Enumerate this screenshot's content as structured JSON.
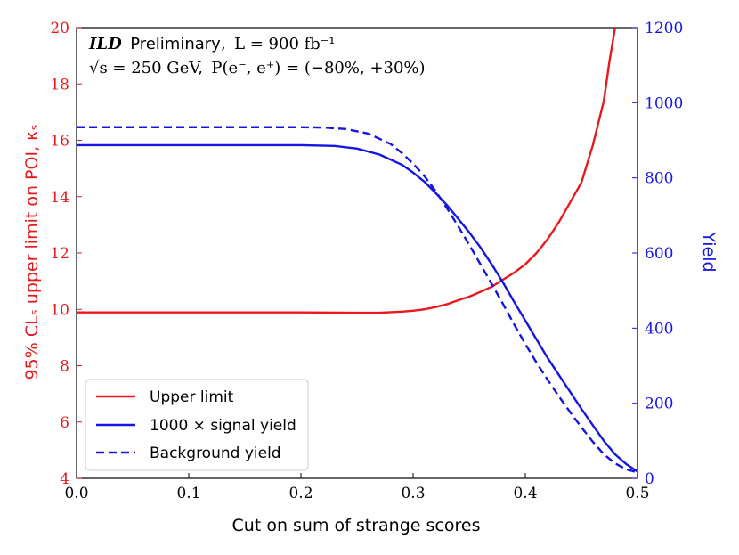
{
  "chart_data": {
    "type": "line",
    "title": "",
    "annotation": {
      "experiment": "ILD",
      "status": "Preliminary,",
      "lumi": "L = 900 fb⁻¹",
      "energy": "√s = 250 GeV,",
      "polarisation": "P(e⁻, e⁺) = (−80%, +30%)"
    },
    "xlabel": "Cut on sum of strange scores",
    "ylabel_left": "95% CLₛ upper limit on POI, κₛ",
    "ylabel_right": "Yield",
    "xlim": [
      0.0,
      0.5
    ],
    "ylim_left": [
      4,
      20
    ],
    "ylim_right": [
      0,
      1200
    ],
    "x_ticks": [
      "0.0",
      "0.1",
      "0.2",
      "0.3",
      "0.4",
      "0.5"
    ],
    "x_tick_values": [
      0.0,
      0.1,
      0.2,
      0.3,
      0.4,
      0.5
    ],
    "y_left_ticks": [
      "4",
      "6",
      "8",
      "10",
      "12",
      "14",
      "16",
      "18",
      "20"
    ],
    "y_left_tick_values": [
      4,
      6,
      8,
      10,
      12,
      14,
      16,
      18,
      20
    ],
    "y_right_ticks": [
      "0",
      "200",
      "400",
      "600",
      "800",
      "1000",
      "1200"
    ],
    "y_right_tick_values": [
      0,
      200,
      400,
      600,
      800,
      1000,
      1200
    ],
    "legend_position": "bottom-left",
    "series": [
      {
        "name": "Upper limit",
        "axis": "left",
        "color": "#e8191d",
        "style": "solid",
        "x": [
          0.0,
          0.05,
          0.1,
          0.15,
          0.2,
          0.25,
          0.27,
          0.29,
          0.3,
          0.31,
          0.32,
          0.33,
          0.34,
          0.35,
          0.36,
          0.37,
          0.38,
          0.39,
          0.4,
          0.41,
          0.42,
          0.43,
          0.44,
          0.45,
          0.46,
          0.47,
          0.475,
          0.48
        ],
        "values": [
          9.89,
          9.89,
          9.89,
          9.89,
          9.89,
          9.88,
          9.88,
          9.92,
          9.95,
          10.0,
          10.08,
          10.18,
          10.32,
          10.45,
          10.62,
          10.8,
          11.05,
          11.3,
          11.6,
          12.0,
          12.5,
          13.1,
          13.8,
          14.5,
          15.8,
          17.4,
          18.8,
          20.0
        ]
      },
      {
        "name": "1000 × signal yield",
        "axis": "right",
        "color": "#1515e0",
        "style": "solid",
        "x": [
          0.0,
          0.05,
          0.1,
          0.15,
          0.2,
          0.23,
          0.25,
          0.27,
          0.29,
          0.3,
          0.31,
          0.32,
          0.33,
          0.34,
          0.35,
          0.36,
          0.37,
          0.38,
          0.39,
          0.4,
          0.41,
          0.42,
          0.43,
          0.44,
          0.45,
          0.46,
          0.47,
          0.48,
          0.49,
          0.5
        ],
        "values": [
          887,
          887,
          887,
          887,
          887,
          885,
          878,
          862,
          835,
          814,
          790,
          760,
          728,
          692,
          655,
          615,
          570,
          522,
          470,
          420,
          370,
          320,
          275,
          230,
          185,
          142,
          100,
          64,
          38,
          18
        ]
      },
      {
        "name": "Background yield",
        "axis": "right",
        "color": "#1515e0",
        "style": "dashed",
        "x": [
          0.0,
          0.05,
          0.1,
          0.15,
          0.2,
          0.22,
          0.24,
          0.26,
          0.28,
          0.29,
          0.3,
          0.31,
          0.32,
          0.33,
          0.34,
          0.35,
          0.36,
          0.37,
          0.38,
          0.39,
          0.4,
          0.41,
          0.42,
          0.43,
          0.44,
          0.45,
          0.46,
          0.47,
          0.48,
          0.49,
          0.5
        ],
        "values": [
          935,
          935,
          935,
          935,
          935,
          934,
          930,
          918,
          890,
          866,
          838,
          805,
          765,
          720,
          672,
          622,
          570,
          518,
          465,
          410,
          358,
          308,
          262,
          218,
          176,
          136,
          98,
          64,
          40,
          24,
          16
        ]
      }
    ]
  }
}
